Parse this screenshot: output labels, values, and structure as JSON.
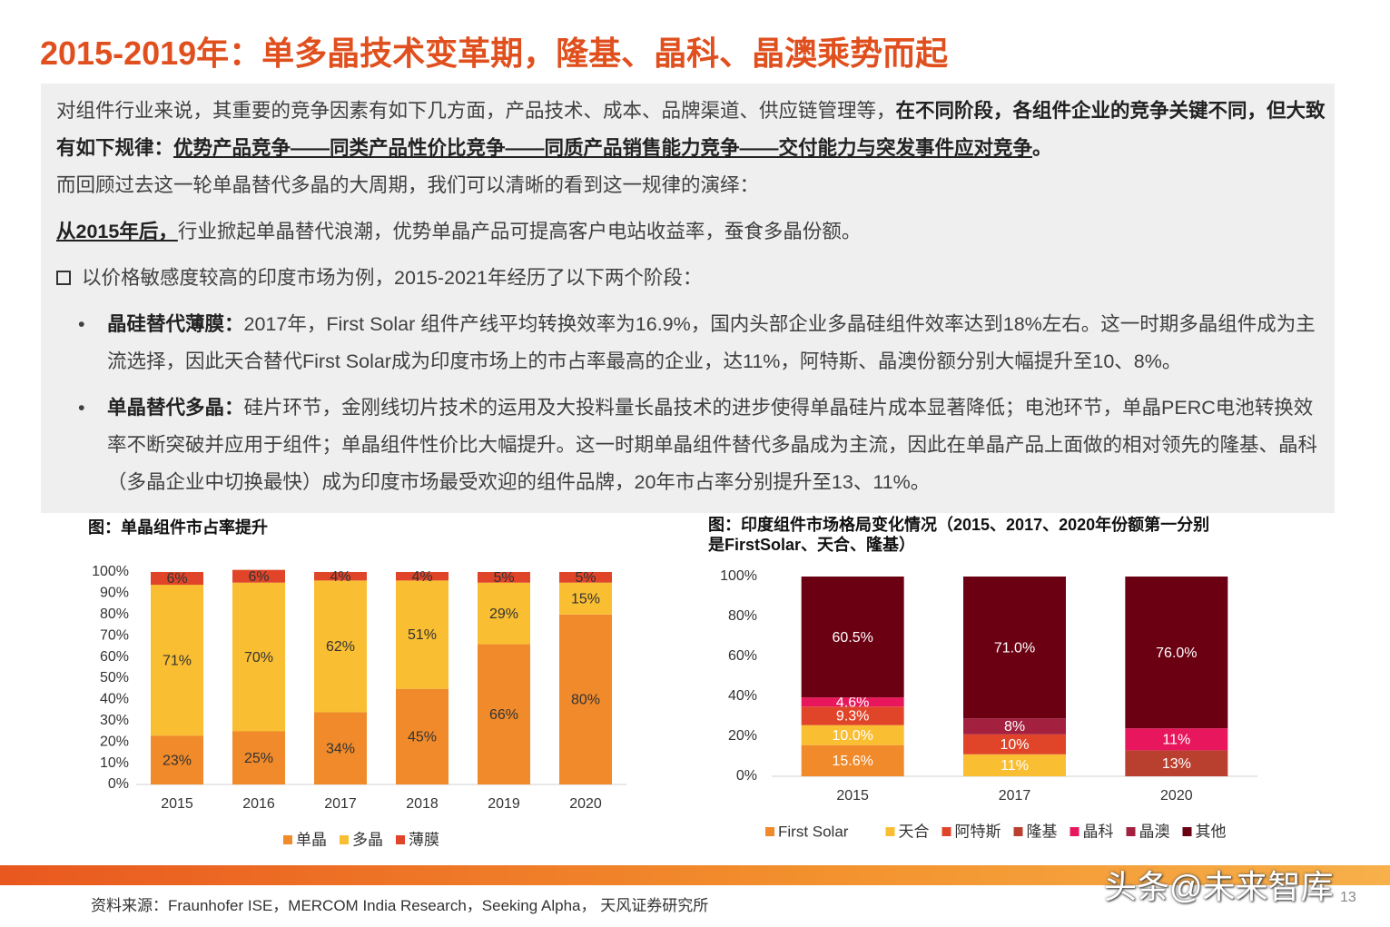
{
  "title": "2015-2019年：单多晶技术变革期，隆基、晶科、晶澳乘势而起",
  "text": {
    "p1": [
      "对组件行业来说，其重要的竞争因素有如下几方面，产品技术、成本、品牌渠道、供应链管理等，",
      "在不同阶段，各组件企业的竞争关键不同，但大致有如下规律：",
      "优势产品竞争——同类产品性价比竞争——同质产品销售能力竞争——交付能力与突发事件应对竞争",
      "。"
    ],
    "p2": "而回顾过去这一轮单晶替代多晶的大周期，我们可以清晰的看到这一规律的演绎：",
    "p3": [
      "从2015年后，",
      "行业掀起单晶替代浪潮，优势单晶产品可提高客户电站收益率，蚕食多晶份额。"
    ],
    "p4": "以价格敏感度较高的印度市场为例，2015-2021年经历了以下两个阶段：",
    "bullets": [
      [
        "晶硅替代薄膜：",
        "2017年，First Solar 组件产线平均转换效率为16.9%，国内头部企业多晶硅组件效率达到18%左右。这一时期多晶组件成为主流选择，因此天合替代First Solar成为印度市场上的市占率最高的企业，达11%，阿特斯、晶澳份额分别大幅提升至10、8%。"
      ],
      [
        "单晶替代多晶：",
        "硅片环节，金刚线切片技术的运用及大投料量长晶技术的进步使得单晶硅片成本显著降低；电池环节，单晶PERC电池转换效率不断突破并应用于组件；单晶组件性价比大幅提升。这一时期单晶组件替代多晶成为主流，因此在单晶产品上面做的相对领先的隆基、晶科（多晶企业中切换最快）成为印度市场最受欢迎的组件品牌，20年市占率分别提升至13、11%。"
      ]
    ]
  },
  "chart_data": [
    {
      "type": "stacked_bar",
      "title": "图：单晶组件市占率提升",
      "categories": [
        "2015",
        "2016",
        "2017",
        "2018",
        "2019",
        "2020"
      ],
      "series": [
        {
          "name": "单晶",
          "color": "#F08A2A",
          "values": [
            23,
            25,
            34,
            45,
            66,
            80
          ],
          "value_labels": [
            "23%",
            "25%",
            "34%",
            "45%",
            "66%",
            "80%"
          ]
        },
        {
          "name": "多晶",
          "color": "#F9BE32",
          "values": [
            71,
            70,
            62,
            51,
            29,
            15
          ],
          "value_labels": [
            "71%",
            "70%",
            "62%",
            "51%",
            "29%",
            "15%"
          ]
        },
        {
          "name": "薄膜",
          "color": "#E0452A",
          "values": [
            6,
            6,
            4,
            4,
            5,
            5
          ],
          "value_labels": [
            "6%",
            "6%",
            "4%",
            "4%",
            "5%",
            "5%"
          ]
        }
      ],
      "ylim": [
        0,
        100
      ],
      "yticks": [
        {
          "value": 0,
          "label": "0%"
        },
        {
          "value": 10,
          "label": "10%"
        },
        {
          "value": 20,
          "label": "20%"
        },
        {
          "value": 30,
          "label": "30%"
        },
        {
          "value": 40,
          "label": "40%"
        },
        {
          "value": 50,
          "label": "50%"
        },
        {
          "value": 60,
          "label": "60%"
        },
        {
          "value": 70,
          "label": "70%"
        },
        {
          "value": 80,
          "label": "80%"
        },
        {
          "value": 90,
          "label": "90%"
        },
        {
          "value": 100,
          "label": "100%"
        }
      ],
      "legend": "bottom"
    },
    {
      "type": "stacked_bar",
      "title": "图：印度组件市场格局变化情况（2015、2017、2020年份额第一分别是FirstSolar、天合、隆基）",
      "categories": [
        "2015",
        "2017",
        "2020"
      ],
      "series": [
        {
          "name": "First Solar",
          "color": "#F08A2A",
          "values": [
            15.6,
            null,
            null
          ],
          "value_labels": [
            "15.6%",
            null,
            null
          ]
        },
        {
          "name": "天合",
          "color": "#F9BE32",
          "values": [
            10.0,
            11,
            null
          ],
          "value_labels": [
            "10.0%",
            "11%",
            null
          ]
        },
        {
          "name": "阿特斯",
          "color": "#E0452A",
          "values": [
            9.3,
            10,
            null
          ],
          "value_labels": [
            "9.3%",
            "10%",
            null
          ]
        },
        {
          "name": "隆基",
          "color": "#B9402F",
          "values": [
            null,
            null,
            13
          ],
          "value_labels": [
            null,
            null,
            "13%"
          ]
        },
        {
          "name": "晶科",
          "color": "#E8175D",
          "values": [
            4.6,
            null,
            11
          ],
          "value_labels": [
            "4.6%",
            null,
            "11%"
          ]
        },
        {
          "name": "晶澳",
          "color": "#A3203F",
          "values": [
            null,
            8,
            null
          ],
          "value_labels": [
            null,
            "8%",
            null
          ]
        },
        {
          "name": "其他",
          "color": "#6B0012",
          "values": [
            60.5,
            71.0,
            76.0
          ],
          "value_labels": [
            "60.5%",
            "71.0%",
            "76.0%"
          ]
        }
      ],
      "ylim": [
        0,
        100
      ],
      "yticks": [
        {
          "value": 0,
          "label": "0%"
        },
        {
          "value": 20,
          "label": "20%"
        },
        {
          "value": 40,
          "label": "40%"
        },
        {
          "value": 60,
          "label": "60%"
        },
        {
          "value": 80,
          "label": "80%"
        },
        {
          "value": 100,
          "label": "100%"
        }
      ],
      "legend": "bottom"
    }
  ],
  "source": "资料来源：Fraunhofer ISE，MERCOM India Research，Seeking Alpha， 天风证券研究所",
  "watermark": "头条@未来智库",
  "page_number": "13"
}
